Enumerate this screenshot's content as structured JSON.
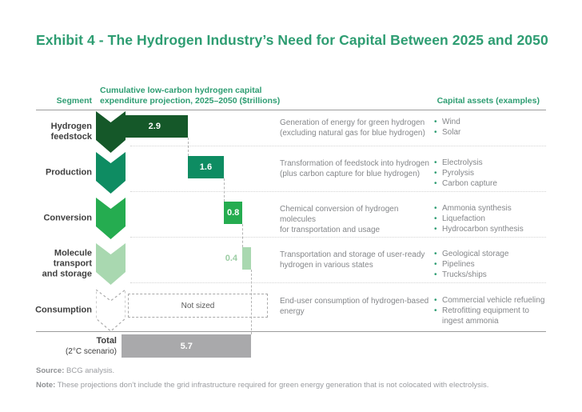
{
  "title": "Exhibit 4 - The Hydrogen Industry’s Need for Capital Between 2025 and 2050",
  "headers": {
    "segment": "Segment",
    "bars": "Cumulative low-carbon hydrogen capital\nexpenditure projection, 2025–2050 ($trillions)",
    "assets": "Capital assets (examples)"
  },
  "rows": [
    {
      "id": "hydrogen-feedstock",
      "label": "Hydrogen\nfeedstock",
      "value": 2.9,
      "value_label": "2.9",
      "value_style": "inside",
      "color": "#155829",
      "description": "Generation of energy for green hydrogen\n(excluding natural gas for blue hydrogen)",
      "bullets": [
        "Wind",
        "Solar"
      ]
    },
    {
      "id": "production",
      "label": "Production",
      "value": 1.6,
      "value_label": "1.6",
      "value_style": "inside",
      "color": "#0E8C62",
      "description": "Transformation of feedstock into hydrogen\n(plus carbon capture for blue hydrogen)",
      "bullets": [
        "Electrolysis",
        "Pyrolysis",
        "Carbon capture"
      ]
    },
    {
      "id": "conversion",
      "label": "Conversion",
      "value": 0.8,
      "value_label": "0.8",
      "value_style": "inside",
      "color": "#25AC50",
      "description": "Chemical conversion of hydrogen molecules\nfor transportation and usage",
      "bullets": [
        "Ammonia synthesis",
        "Liquefaction",
        "Hydrocarbon synthesis"
      ]
    },
    {
      "id": "molecule-transport-and-storage",
      "label": "Molecule\ntransport\nand storage",
      "value": 0.4,
      "value_label": "0.4",
      "value_style": "outside",
      "color": "#A9D8B0",
      "value_color": "#9CCDA4",
      "description": "Transportation and storage of user-ready\nhydrogen in various states",
      "bullets": [
        "Geological storage",
        "Pipelines",
        "Trucks/ships"
      ]
    },
    {
      "id": "consumption",
      "label": "Consumption",
      "value": null,
      "value_label": "Not sized",
      "value_style": "not-sized",
      "color": null,
      "description": "End-user consumption of hydrogen-based\nenergy",
      "bullets": [
        "Commercial vehicle refueling",
        "Retrofitting equipment to\ningest ammonia"
      ]
    }
  ],
  "total": {
    "label": "Total",
    "label_sub": "(2°C scenario)",
    "value": 5.7,
    "value_label": "5.7",
    "color": "#A9A9AB"
  },
  "footer": {
    "source_label": "Source:",
    "source_text": " BCG analysis.",
    "note_label": "Note:",
    "note_text": " These projections don’t include the grid infrastructure required for green energy generation that is not colocated with electrolysis."
  },
  "colors": {
    "accent_green": "#2E9D72",
    "dark_green": "#155829",
    "teal_green": "#0E8C62",
    "bright_green": "#25AC50",
    "light_green": "#A9D8B0",
    "total_gray": "#A9A9AB",
    "text_gray": "#85878A",
    "label_dark": "#3F3F3F"
  },
  "chart_data": {
    "type": "bar",
    "subtype": "waterfall-horizontal",
    "title": "Cumulative low-carbon hydrogen capital expenditure projection, 2025–2050 ($trillions)",
    "categories": [
      "Hydrogen feedstock",
      "Production",
      "Conversion",
      "Molecule transport and storage",
      "Consumption",
      "Total (2°C scenario)"
    ],
    "values": [
      2.9,
      1.6,
      0.8,
      0.4,
      null,
      5.7
    ],
    "value_labels": [
      "2.9",
      "1.6",
      "0.8",
      "0.4",
      "Not sized",
      "5.7"
    ],
    "unit": "$trillions",
    "xlim": [
      0,
      5.7
    ],
    "grid": false,
    "legend": false
  }
}
